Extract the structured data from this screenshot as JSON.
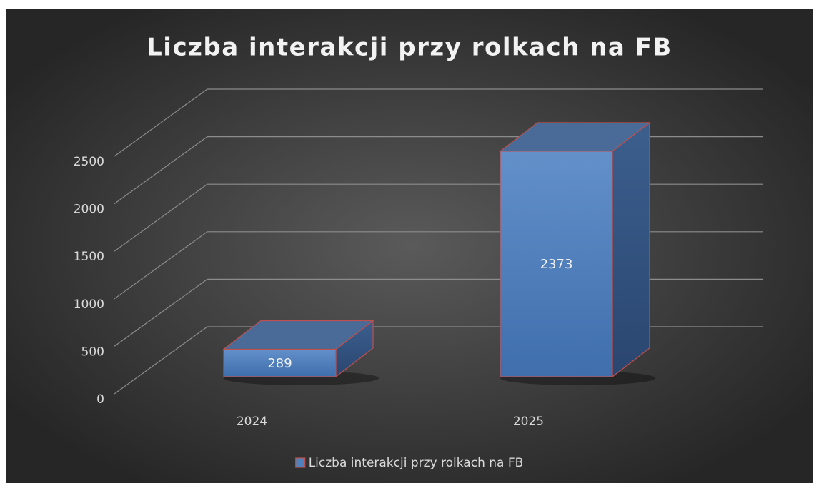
{
  "chart_data": {
    "type": "bar",
    "title": "Liczba interakcji przy rolkach na FB",
    "categories": [
      "2024",
      "2025"
    ],
    "series": [
      {
        "name": "Liczba interakcji przy rolkach na FB",
        "color": "#4f81bd",
        "edge_color": "#c0504d",
        "values": [
          289,
          2373
        ]
      }
    ],
    "ylim": [
      0,
      2500
    ],
    "yticks": [
      0,
      500,
      1000,
      1500,
      2000,
      2500
    ],
    "grid": true,
    "legend": "bottom",
    "data_labels": true
  }
}
